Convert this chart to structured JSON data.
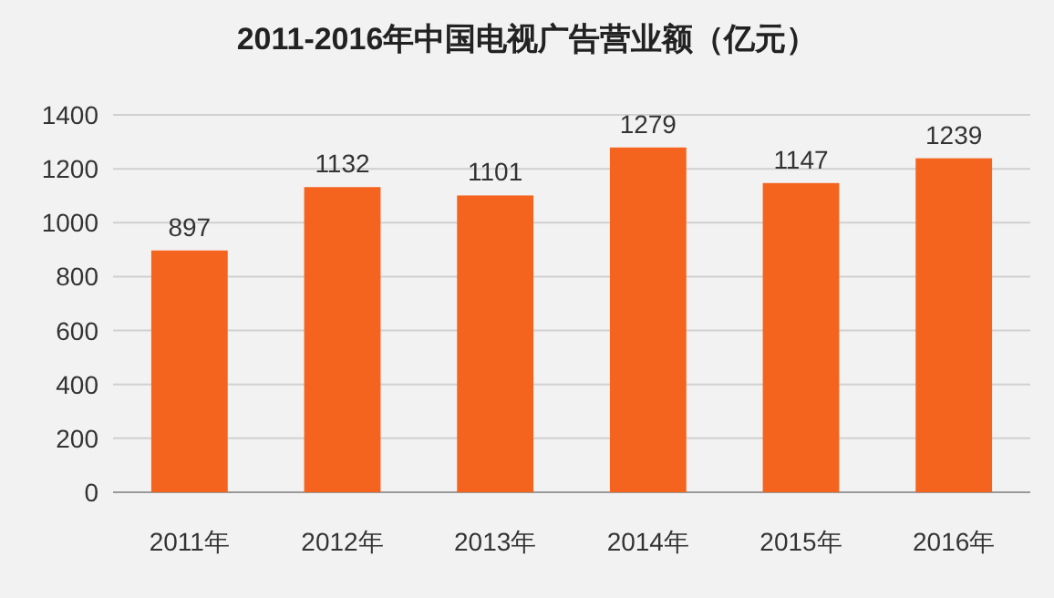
{
  "chart_data": {
    "type": "bar",
    "title": "2011-2016年中国电视广告营业额（亿元）",
    "categories": [
      "2011年",
      "2012年",
      "2013年",
      "2014年",
      "2015年",
      "2016年"
    ],
    "values": [
      897,
      1132,
      1101,
      1279,
      1147,
      1239
    ],
    "color": "#f5641e",
    "ylim": [
      0,
      1400
    ],
    "yticks": [
      0,
      200,
      400,
      600,
      800,
      1000,
      1200,
      1400
    ],
    "grid": "y",
    "data_labels": true
  }
}
